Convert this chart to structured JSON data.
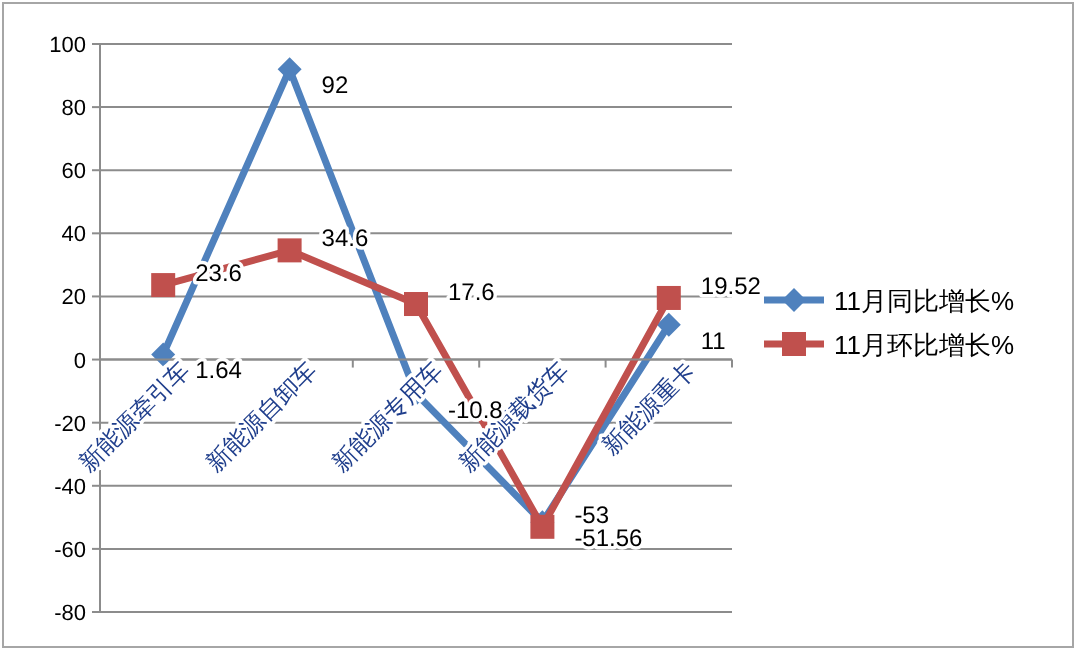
{
  "chart_data": {
    "type": "line",
    "categories": [
      "新能源牵引车",
      "新能源自卸车",
      "新能源专用车",
      "新能源载货车",
      "新能源重卡"
    ],
    "series": [
      {
        "name": "11月同比增长%",
        "color": "#4f81bd",
        "marker": "diamond",
        "values": [
          1.64,
          92,
          -10.8,
          -51.56,
          11
        ]
      },
      {
        "name": "11月环比增长%",
        "color": "#c0504d",
        "marker": "square",
        "values": [
          23.6,
          34.6,
          17.6,
          -53,
          19.52
        ]
      }
    ],
    "ylim": [
      -80,
      100
    ],
    "yticks": [
      -80,
      -60,
      -40,
      -20,
      0,
      20,
      40,
      60,
      80,
      100
    ],
    "grid": "y",
    "legend": "right",
    "data_labels": true,
    "line_style": "solid"
  }
}
